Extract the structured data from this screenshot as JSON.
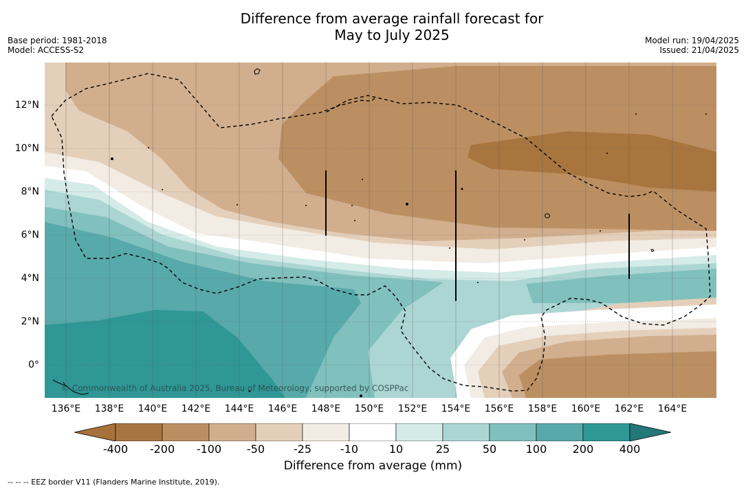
{
  "title_line1": "Difference from average rainfall forecast for",
  "title_line2": "May to July 2025",
  "base_period": "Base period: 1981-2018",
  "model": "Model: ACCESS-S2",
  "model_run": "Model run: 19/04/2025",
  "issued": "Issued: 21/04/2025",
  "copyright": "© Commonwealth of Australia 2025, Bureau of Meteorology, supported by COSPPac",
  "x_ticks": [
    "136°E",
    "138°E",
    "140°E",
    "142°E",
    "144°E",
    "146°E",
    "148°E",
    "150°E",
    "152°E",
    "154°E",
    "156°E",
    "158°E",
    "160°E",
    "162°E",
    "164°E"
  ],
  "y_ticks": [
    "12°N",
    "10°N",
    "8°N",
    "6°N",
    "4°N",
    "2°N",
    "0°"
  ],
  "colorbar": {
    "title": "Difference from average (mm)",
    "labels": [
      "-400",
      "-200",
      "-100",
      "-50",
      "-25",
      "-10",
      "10",
      "25",
      "50",
      "100",
      "200",
      "400"
    ],
    "colors": [
      "#a8703a",
      "#a87542",
      "#bc8f62",
      "#d1ae8d",
      "#e4cfba",
      "#f2ece4",
      "#ffffff",
      "#d4ebe8",
      "#acd6d3",
      "#80c0bd",
      "#58a9aa",
      "#2f9795",
      "#24787a"
    ]
  },
  "footnote": "--  --  -- EEZ border V11 (Flanders Marine Institute, 2019)."
}
